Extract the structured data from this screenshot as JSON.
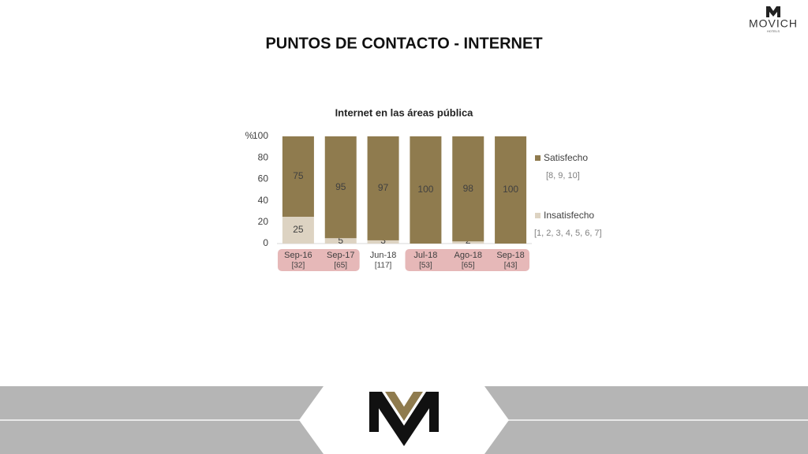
{
  "page_title": "PUNTOS DE CONTACTO - INTERNET",
  "logo": {
    "name": "MOVICH",
    "tagline": "HOTELS"
  },
  "chart_data": {
    "type": "stacked_bar",
    "title": "Internet en las áreas pública",
    "ylabel": "%",
    "categories": [
      "Sep-16",
      "Sep-17",
      "Jun-18",
      "Jul-18",
      "Ago-18",
      "Sep-18"
    ],
    "sample_sizes": [
      "[32]",
      "[65]",
      "[117]",
      "[53]",
      "[65]",
      "[43]"
    ],
    "highlight": [
      true,
      true,
      false,
      true,
      true,
      true
    ],
    "highlight_color": "#e6b8b8",
    "series": [
      {
        "name": "Insatisfecho",
        "scale": "[1, 2, 3, 4, 5, 6, 7]",
        "color": "#ddd3c2",
        "values": [
          25,
          5,
          3,
          0,
          2,
          0
        ],
        "value_labels": [
          "25",
          "5",
          "3",
          null,
          "2",
          null
        ]
      },
      {
        "name": "Satisfecho",
        "scale": "[8, 9, 10]",
        "color": "#8f7b4e",
        "values": [
          75,
          95,
          97,
          100,
          98,
          100
        ]
      }
    ],
    "ylim": [
      0,
      100
    ],
    "yticks": [
      0,
      20,
      40,
      60,
      80,
      100
    ],
    "grid": false,
    "legend": "right"
  }
}
